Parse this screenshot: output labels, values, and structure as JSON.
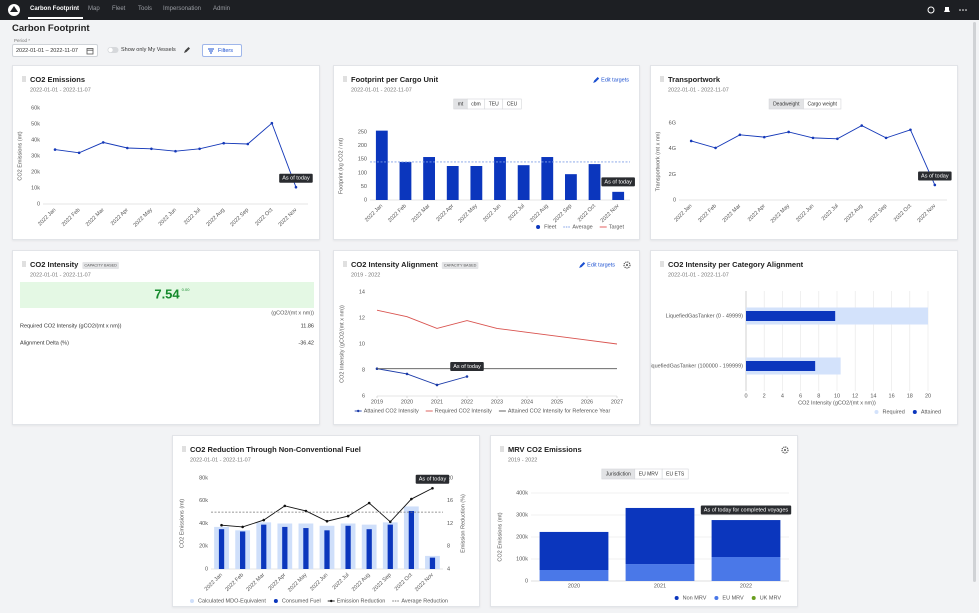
{
  "nav": {
    "tabs": [
      "Carbon Footprint",
      "Map",
      "Fleet",
      "Tools",
      "Impersonation",
      "Admin"
    ]
  },
  "header": {
    "title": "Carbon Footprint",
    "period_label": "Period *",
    "period": "2022-01-01 – 2022-11-07",
    "toggle": "Show only My Vessels",
    "filters": "Filters"
  },
  "chart_data": [
    {
      "type": "line",
      "title": "CO2 Emissions",
      "subtitle": "2022-01-01 - 2022-11-07",
      "y_label": "CO2 Emissions (mt)",
      "annotation": "As of today",
      "categories": [
        "2022 Jan",
        "2022 Feb",
        "2022 Mar",
        "2022 Apr",
        "2022 May",
        "2022 Jun",
        "2022 Jul",
        "2022 Aug",
        "2022 Sep",
        "2022 Oct",
        "2022 Nov"
      ],
      "values": [
        34000,
        32000,
        38500,
        35000,
        34500,
        33000,
        34500,
        38000,
        37500,
        50500,
        10500
      ],
      "color": "#1438b8",
      "ylim": [
        0,
        60000
      ],
      "yticks": [
        0,
        {
          "value": 10000,
          "label": "10k"
        },
        {
          "value": 20000,
          "label": "20k"
        },
        {
          "value": 30000,
          "label": "30k"
        },
        {
          "value": 40000,
          "label": "40k"
        },
        {
          "value": 50000,
          "label": "50k"
        },
        {
          "value": 60000,
          "label": "60k"
        }
      ],
      "grid": false
    },
    {
      "type": "bar",
      "title": "Footprint per Cargo Unit",
      "subtitle": "2022-01-01 - 2022-11-07",
      "link": "Edit targets",
      "toggles": [
        "mt",
        "cbm",
        "TEU",
        "CEU"
      ],
      "active_toggle": 0,
      "y_label": "Footprint (kg CO2 / mt)",
      "annotation": "As of today",
      "categories": [
        "2022 Jan",
        "2022 Feb",
        "2022 Mar",
        "2022 Apr",
        "2022 May",
        "2022 Jun",
        "2022 Jul",
        "2022 Aug",
        "2022 Sep",
        "2022 Oct",
        "2022 Nov"
      ],
      "series": [
        {
          "name": "Fleet",
          "color": "#0b36bd",
          "values": [
            255,
            140,
            158,
            125,
            125,
            158,
            128,
            158,
            95,
            132,
            30
          ]
        }
      ],
      "reference_lines": [
        {
          "name": "Average",
          "value": 140,
          "color": "#7f9fe6",
          "dash": true
        },
        {
          "name": "Target",
          "value": null,
          "color": "#e0504f",
          "dash": false
        }
      ],
      "ylim": [
        0,
        250
      ],
      "yticks": [
        0,
        50,
        100,
        150,
        200,
        250
      ],
      "grid": false
    },
    {
      "type": "line",
      "title": "Transportwork",
      "subtitle": "2022-01-01 - 2022-11-07",
      "toggles": [
        "Deadweight",
        "Cargo weight"
      ],
      "active_toggle": 0,
      "y_label": "Transportwork (mt x nm)",
      "annotation": "As of today",
      "categories": [
        "2022 Jan",
        "2022 Feb",
        "2022 Mar",
        "2022 Apr",
        "2022 May",
        "2022 Jun",
        "2022 Jul",
        "2022 Aug",
        "2022 Sep",
        "2022 Oct",
        "2022 Nov"
      ],
      "values": [
        4600000000,
        4060000000,
        5080000000,
        4900000000,
        5300000000,
        4840000000,
        4770000000,
        5800000000,
        4840000000,
        5470000000,
        1170000000
      ],
      "color": "#1438b8",
      "ylim": [
        0,
        6000000000
      ],
      "yticks": [
        0,
        {
          "value": 2000000000,
          "label": "2G"
        },
        {
          "value": 4000000000,
          "label": "4G"
        },
        {
          "value": 6000000000,
          "label": "6G"
        }
      ],
      "grid": false
    },
    {
      "type": "kpi",
      "title": "CO2 Intensity",
      "badge": "CAPACITY BASED",
      "subtitle": "2022-01-01 - 2022-11-07",
      "value": 7.54,
      "value_sup": "0.00",
      "unit": "(gCO2/(mt x nm))",
      "rows": [
        {
          "label": "Required CO2 Intensity (gCO2/(mt x nm))",
          "value": 11.86
        },
        {
          "label": "Alignment Delta (%)",
          "value": -36.42
        }
      ]
    },
    {
      "type": "line_xy",
      "title": "CO2 Intensity Alignment",
      "badge": "CAPACITY BASED",
      "subtitle": "2019 - 2022",
      "link": "Edit targets",
      "y_label": "CO2 Intensity (gCO2/(mt x nm))",
      "annotation": "As of today",
      "x": [
        2019,
        2020,
        2021,
        2022,
        2023,
        2024,
        2025,
        2026,
        2027
      ],
      "xlim": [
        2019,
        2027
      ],
      "xticks": [
        2019,
        2020,
        2021,
        2022,
        2023,
        2024,
        2025,
        2026,
        2027
      ],
      "series": [
        {
          "name": "Attained CO2 Intensity",
          "color": "#1a3aa8",
          "values": [
            8.1,
            7.7,
            6.85,
            7.5,
            null,
            null,
            null,
            null,
            null
          ],
          "markers": true
        },
        {
          "name": "Required CO2 Intensity",
          "color": "#d9534f",
          "values": [
            12.6,
            12.1,
            11.2,
            11.8,
            11.2,
            10.9,
            10.6,
            10.3,
            10.0
          ],
          "markers": false
        },
        {
          "name": "Attained CO2 Intensity for Reference Year",
          "color": "#555555",
          "values": [
            8.1,
            8.1,
            8.1,
            8.1,
            8.1,
            8.1,
            8.1,
            8.1,
            8.1
          ],
          "markers": false
        }
      ],
      "ylim": [
        6,
        14
      ],
      "yticks": [
        6,
        8,
        10,
        12,
        14
      ],
      "grid": false
    },
    {
      "type": "hbar",
      "title": "CO2 Intensity per Category Alignment",
      "subtitle": "2022-01-01 - 2022-11-07",
      "x_label": "CO2 Intensity (gCO2/(mt x nm))",
      "categories": [
        "LiquefiedGasTanker (0 - 49999)",
        "LiquefiedGasTanker (100000 - 199999)"
      ],
      "series": [
        {
          "name": "Required",
          "color": "#d3e2fb",
          "values": [
            20,
            10.4
          ]
        },
        {
          "name": "Attained",
          "color": "#0b36bd",
          "values": [
            9.8,
            7.6
          ]
        }
      ],
      "xlim": [
        0,
        20
      ],
      "xticks": [
        0,
        2,
        4,
        6,
        8,
        10,
        12,
        14,
        16,
        18,
        20
      ],
      "grid": true
    },
    {
      "type": "combo",
      "title": "CO2 Reduction Through Non-Conventional Fuel",
      "subtitle": "2022-01-01 - 2022-11-07",
      "y_label": "CO2 Emissions (mt)",
      "y2_label": "Emission Reduction (%)",
      "annotation": "As of today",
      "categories": [
        "2022 Jan",
        "2022 Feb",
        "2022 Mar",
        "2022 Apr",
        "2022 May",
        "2022 Jun",
        "2022 Jul",
        "2022 Aug",
        "2022 Sep",
        "2022 Oct",
        "2022 Nov"
      ],
      "series": [
        {
          "name": "Calculated MDO-Equivalent",
          "kind": "bar",
          "color": "#cfdffa",
          "values": [
            37000,
            34000,
            41000,
            40000,
            40000,
            38000,
            40000,
            39000,
            41000,
            55000,
            11500
          ]
        },
        {
          "name": "Consumed Fuel",
          "kind": "bar",
          "color": "#0b36bd",
          "values": [
            35000,
            33000,
            39000,
            37000,
            36000,
            34000,
            38000,
            35000,
            39000,
            51000,
            10000
          ]
        },
        {
          "name": "Emission Reduction",
          "kind": "line",
          "axis": "y2",
          "color": "#111111",
          "values": [
            11.7,
            11.4,
            12.6,
            15.1,
            14.2,
            12.4,
            13.3,
            15.6,
            12.3,
            16.3,
            18.2
          ]
        }
      ],
      "reference_lines": [
        {
          "name": "Average Reduction",
          "value": 14,
          "axis": "y2",
          "color": "#777777",
          "dash": true
        }
      ],
      "ylim": [
        0,
        80000
      ],
      "yticks": [
        0,
        {
          "value": 20000,
          "label": "20k"
        },
        {
          "value": 40000,
          "label": "40k"
        },
        {
          "value": 60000,
          "label": "60k"
        },
        {
          "value": 80000,
          "label": "80k"
        }
      ],
      "y2lim": [
        4,
        20
      ],
      "y2ticks": [
        4,
        8,
        12,
        16,
        20
      ],
      "grid": false
    },
    {
      "type": "stacked_bar",
      "title": "MRV CO2 Emissions",
      "subtitle": "2019 - 2022",
      "toggles": [
        "Jurisdiction",
        "EU MRV",
        "EU ETS"
      ],
      "active_toggle": 0,
      "y_label": "CO2 Emissions (mt)",
      "annotation": "As of today for completed voyages",
      "categories": [
        "2020",
        "2021",
        "2022"
      ],
      "series": [
        {
          "name": "Non MRV",
          "color": "#0b36bd",
          "values": [
            173000,
            255000,
            168000
          ]
        },
        {
          "name": "EU MRV",
          "color": "#4a78e8",
          "values": [
            50000,
            77000,
            109000
          ]
        },
        {
          "name": "UK MRV",
          "color": "#6a9e1f",
          "values": [
            0,
            0,
            0
          ]
        }
      ],
      "ylim": [
        0,
        400000
      ],
      "yticks": [
        0,
        {
          "value": 100000,
          "label": "100k"
        },
        {
          "value": 200000,
          "label": "200k"
        },
        {
          "value": 300000,
          "label": "300k"
        },
        {
          "value": 400000,
          "label": "400k"
        }
      ],
      "grid": true
    }
  ]
}
